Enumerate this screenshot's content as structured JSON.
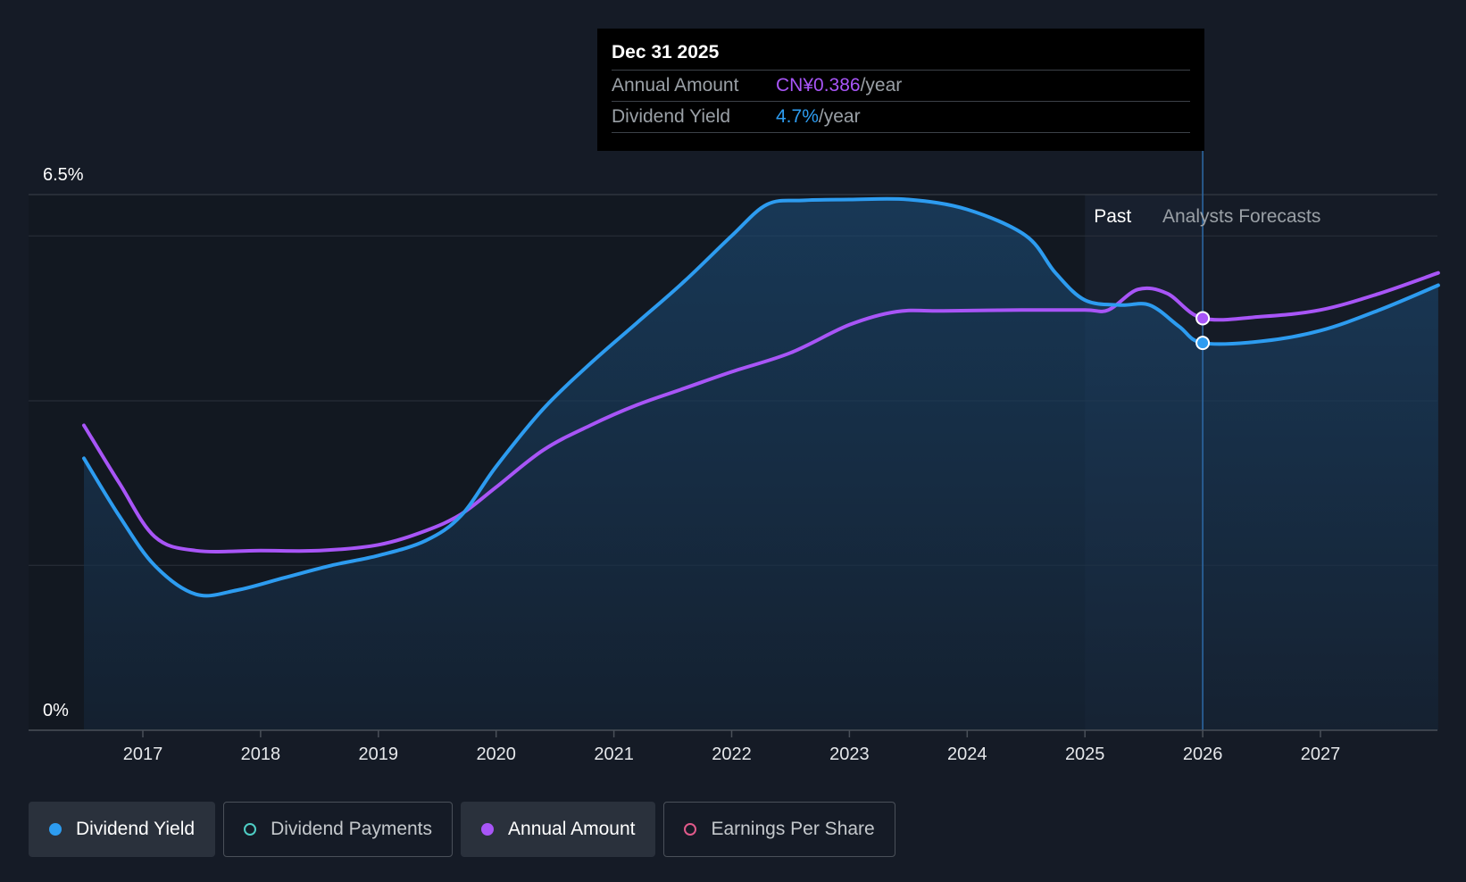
{
  "tooltip": {
    "date": "Dec 31 2025",
    "rows": [
      {
        "label": "Annual Amount",
        "value": "CN¥0.386",
        "unit": "/year",
        "color": "#a855f7"
      },
      {
        "label": "Dividend Yield",
        "value": "4.7%",
        "unit": "/year",
        "color": "#2d9cf0"
      }
    ]
  },
  "regions": {
    "past_label": "Past",
    "forecast_label": "Analysts Forecasts"
  },
  "legend": [
    {
      "label": "Dividend Yield",
      "active": true,
      "color": "#2d9cf0",
      "filled": true
    },
    {
      "label": "Dividend Payments",
      "active": false,
      "color": "#4ecdc4",
      "filled": false
    },
    {
      "label": "Annual Amount",
      "active": true,
      "color": "#a855f7",
      "filled": true
    },
    {
      "label": "Earnings Per Share",
      "active": false,
      "color": "#e05a8a",
      "filled": false
    }
  ],
  "chart_data": {
    "type": "line",
    "x_ticks": [
      "2017",
      "2018",
      "2019",
      "2020",
      "2021",
      "2022",
      "2023",
      "2024",
      "2025",
      "2026",
      "2027"
    ],
    "y_tick_labels": [
      "6.5%",
      "0%"
    ],
    "ylim": [
      0,
      6.5
    ],
    "xlim": [
      2016.0,
      2028.0
    ],
    "grid": true,
    "forecast_start": 2025.0,
    "highlight_x": 2026.0,
    "series": [
      {
        "name": "Dividend Yield",
        "unit": "%",
        "color": "#2d9cf0",
        "area": true,
        "points": [
          [
            2016.5,
            3.3
          ],
          [
            2016.8,
            2.6
          ],
          [
            2017.1,
            2.0
          ],
          [
            2017.45,
            1.65
          ],
          [
            2017.8,
            1.7
          ],
          [
            2018.2,
            1.85
          ],
          [
            2018.6,
            2.0
          ],
          [
            2019.0,
            2.12
          ],
          [
            2019.4,
            2.3
          ],
          [
            2019.7,
            2.6
          ],
          [
            2020.0,
            3.2
          ],
          [
            2020.4,
            3.9
          ],
          [
            2020.8,
            4.45
          ],
          [
            2021.2,
            4.95
          ],
          [
            2021.6,
            5.45
          ],
          [
            2022.0,
            6.0
          ],
          [
            2022.3,
            6.38
          ],
          [
            2022.6,
            6.43
          ],
          [
            2023.0,
            6.44
          ],
          [
            2023.5,
            6.44
          ],
          [
            2024.0,
            6.32
          ],
          [
            2024.5,
            6.0
          ],
          [
            2024.75,
            5.55
          ],
          [
            2025.0,
            5.22
          ],
          [
            2025.3,
            5.16
          ],
          [
            2025.55,
            5.16
          ],
          [
            2025.8,
            4.9
          ],
          [
            2026.0,
            4.7
          ],
          [
            2026.5,
            4.72
          ],
          [
            2027.0,
            4.85
          ],
          [
            2027.5,
            5.1
          ],
          [
            2028.0,
            5.4
          ]
        ]
      },
      {
        "name": "Annual Amount",
        "unit": "CN¥",
        "color": "#a855f7",
        "area": false,
        "points": [
          [
            2016.5,
            3.7
          ],
          [
            2016.8,
            3.0
          ],
          [
            2017.1,
            2.35
          ],
          [
            2017.45,
            2.18
          ],
          [
            2018.0,
            2.18
          ],
          [
            2018.5,
            2.18
          ],
          [
            2019.0,
            2.25
          ],
          [
            2019.4,
            2.42
          ],
          [
            2019.7,
            2.62
          ],
          [
            2020.0,
            2.95
          ],
          [
            2020.4,
            3.4
          ],
          [
            2020.8,
            3.7
          ],
          [
            2021.2,
            3.95
          ],
          [
            2021.6,
            4.15
          ],
          [
            2022.0,
            4.35
          ],
          [
            2022.5,
            4.58
          ],
          [
            2023.0,
            4.92
          ],
          [
            2023.4,
            5.08
          ],
          [
            2023.8,
            5.09
          ],
          [
            2024.5,
            5.1
          ],
          [
            2025.0,
            5.1
          ],
          [
            2025.2,
            5.1
          ],
          [
            2025.45,
            5.35
          ],
          [
            2025.7,
            5.3
          ],
          [
            2026.0,
            5.0
          ],
          [
            2026.5,
            5.02
          ],
          [
            2027.0,
            5.1
          ],
          [
            2027.5,
            5.3
          ],
          [
            2028.0,
            5.55
          ]
        ]
      }
    ]
  }
}
